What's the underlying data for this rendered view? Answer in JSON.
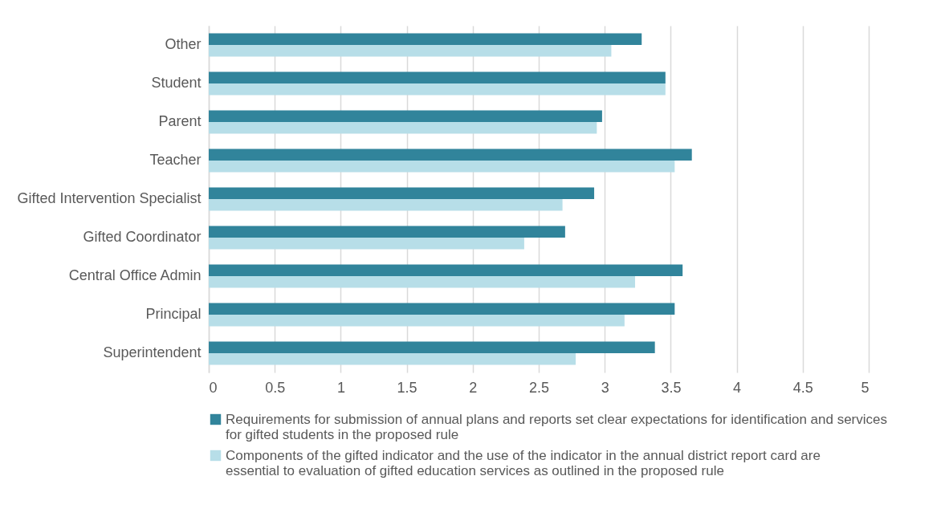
{
  "chart_data": {
    "type": "bar",
    "orientation": "horizontal",
    "categories": [
      "Other",
      "Student",
      "Parent",
      "Teacher",
      "Gifted Intervention Specialist",
      "Gifted Coordinator",
      "Central Office Admin",
      "Principal",
      "Superintendent"
    ],
    "series": [
      {
        "name": "Requirements for submission of annual plans and reports set clear expectations for identification and services for gifted students in the proposed rule",
        "color": "#31849b",
        "values": [
          3.28,
          3.46,
          2.98,
          3.66,
          2.92,
          2.7,
          3.59,
          3.53,
          3.38
        ]
      },
      {
        "name": "Components of the gifted indicator and the use of the indicator in the annual district report card are essential to evaluation of gifted education services as outlined in the proposed rule",
        "color": "#b7dee8",
        "values": [
          3.05,
          3.46,
          2.94,
          3.53,
          2.68,
          2.39,
          3.23,
          3.15,
          2.78
        ]
      }
    ],
    "xlim": [
      0,
      5
    ],
    "xticks": [
      0,
      0.5,
      1,
      1.5,
      2,
      2.5,
      3,
      3.5,
      4,
      4.5,
      5
    ],
    "grid": "x",
    "legend": "bottom"
  }
}
